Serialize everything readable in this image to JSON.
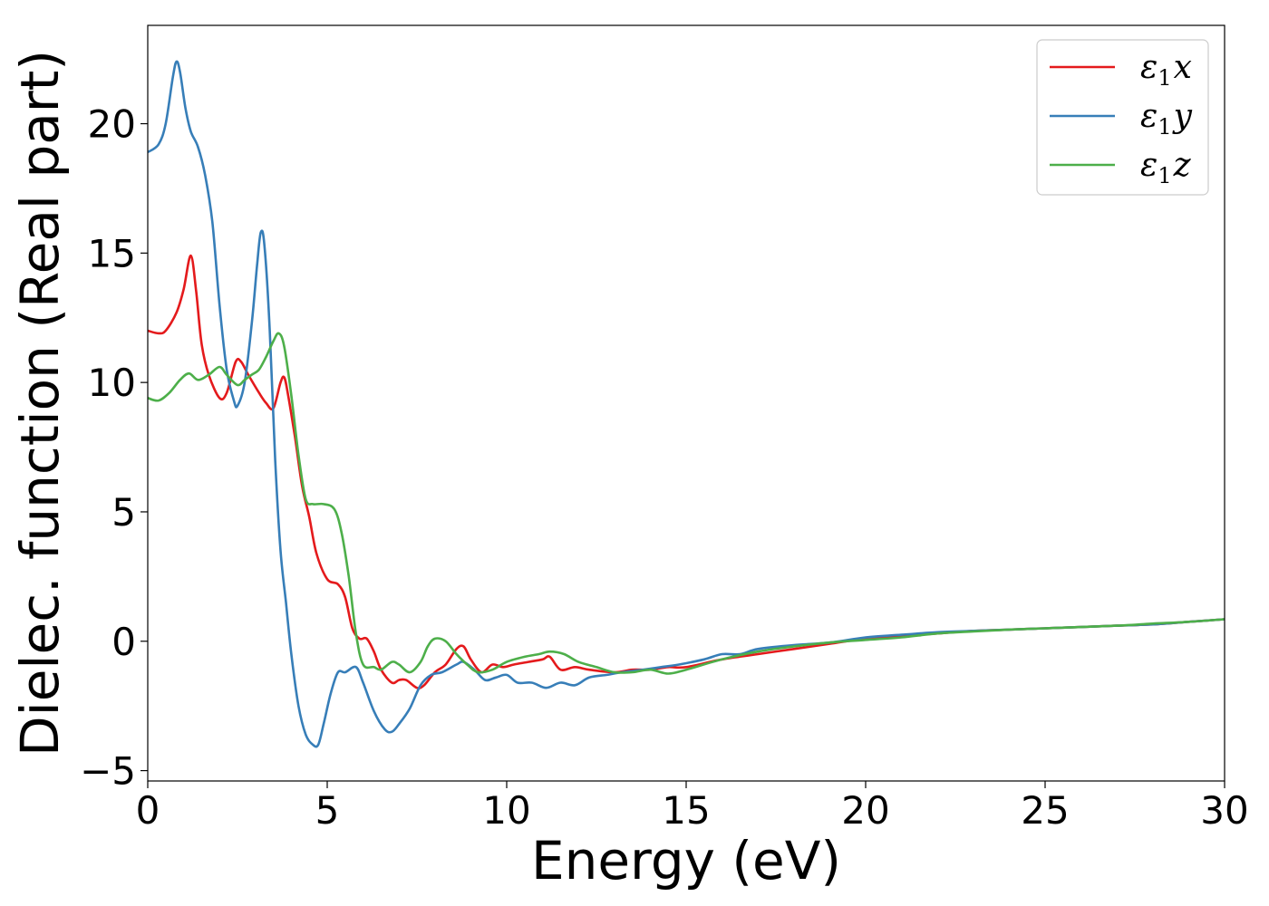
{
  "chart_data": {
    "type": "line",
    "xlabel": "Energy (eV)",
    "ylabel": "Dielec. function (Real part)",
    "xlim": [
      0,
      30
    ],
    "ylim": [
      -5.4,
      23.8
    ],
    "xticks": [
      0,
      5,
      10,
      15,
      20,
      25,
      30
    ],
    "yticks": [
      -5,
      0,
      5,
      10,
      15,
      20
    ],
    "xtick_labels": [
      "0",
      "5",
      "10",
      "15",
      "20",
      "25",
      "30"
    ],
    "ytick_labels": [
      "−5",
      "0",
      "5",
      "10",
      "15",
      "20"
    ],
    "grid": false,
    "legend_position": "top-right",
    "series": [
      {
        "name": "ε",
        "sub": "1",
        "var": "x",
        "color": "#e41a1c",
        "points": [
          [
            0,
            12.0
          ],
          [
            0.3,
            11.9
          ],
          [
            0.5,
            12.0
          ],
          [
            0.8,
            12.7
          ],
          [
            1.0,
            13.6
          ],
          [
            1.2,
            14.9
          ],
          [
            1.35,
            13.5
          ],
          [
            1.5,
            11.5
          ],
          [
            1.7,
            10.3
          ],
          [
            2.0,
            9.4
          ],
          [
            2.2,
            9.6
          ],
          [
            2.45,
            10.8
          ],
          [
            2.6,
            10.8
          ],
          [
            2.8,
            10.3
          ],
          [
            3.1,
            9.6
          ],
          [
            3.3,
            9.2
          ],
          [
            3.5,
            9.0
          ],
          [
            3.7,
            10.0
          ],
          [
            3.8,
            10.2
          ],
          [
            3.9,
            9.6
          ],
          [
            4.1,
            7.9
          ],
          [
            4.3,
            6.0
          ],
          [
            4.5,
            4.8
          ],
          [
            4.7,
            3.4
          ],
          [
            5.0,
            2.4
          ],
          [
            5.3,
            2.2
          ],
          [
            5.5,
            1.7
          ],
          [
            5.7,
            0.5
          ],
          [
            5.9,
            0.1
          ],
          [
            6.1,
            0.1
          ],
          [
            6.3,
            -0.4
          ],
          [
            6.5,
            -1.1
          ],
          [
            6.8,
            -1.6
          ],
          [
            7.0,
            -1.5
          ],
          [
            7.2,
            -1.5
          ],
          [
            7.5,
            -1.8
          ],
          [
            7.7,
            -1.7
          ],
          [
            8.0,
            -1.2
          ],
          [
            8.3,
            -0.9
          ],
          [
            8.6,
            -0.3
          ],
          [
            8.8,
            -0.2
          ],
          [
            9.0,
            -0.7
          ],
          [
            9.3,
            -1.2
          ],
          [
            9.6,
            -0.9
          ],
          [
            9.9,
            -1.0
          ],
          [
            10.2,
            -0.9
          ],
          [
            10.6,
            -0.8
          ],
          [
            11.0,
            -0.7
          ],
          [
            11.2,
            -0.6
          ],
          [
            11.5,
            -1.1
          ],
          [
            11.9,
            -1.0
          ],
          [
            12.3,
            -1.1
          ],
          [
            13.0,
            -1.2
          ],
          [
            13.5,
            -1.1
          ],
          [
            14.0,
            -1.1
          ],
          [
            14.5,
            -1.0
          ],
          [
            15.0,
            -1.0
          ],
          [
            16.0,
            -0.7
          ],
          [
            17.0,
            -0.5
          ],
          [
            18.0,
            -0.3
          ],
          [
            19.0,
            -0.1
          ],
          [
            20.0,
            0.1
          ],
          [
            21.0,
            0.2
          ],
          [
            22.0,
            0.3
          ],
          [
            23.0,
            0.4
          ],
          [
            24.0,
            0.45
          ],
          [
            25.0,
            0.5
          ],
          [
            26.0,
            0.55
          ],
          [
            27.0,
            0.6
          ],
          [
            28.0,
            0.65
          ],
          [
            29.0,
            0.75
          ],
          [
            30.0,
            0.85
          ]
        ]
      },
      {
        "name": "ε",
        "sub": "1",
        "var": "y",
        "color": "#377eb8",
        "points": [
          [
            0,
            18.9
          ],
          [
            0.3,
            19.2
          ],
          [
            0.5,
            20.0
          ],
          [
            0.7,
            21.8
          ],
          [
            0.8,
            22.4
          ],
          [
            0.9,
            22.0
          ],
          [
            1.05,
            20.6
          ],
          [
            1.2,
            19.7
          ],
          [
            1.4,
            19.1
          ],
          [
            1.6,
            18.0
          ],
          [
            1.8,
            16.2
          ],
          [
            2.0,
            13.0
          ],
          [
            2.2,
            10.5
          ],
          [
            2.4,
            9.3
          ],
          [
            2.5,
            9.1
          ],
          [
            2.7,
            10.0
          ],
          [
            2.9,
            12.3
          ],
          [
            3.05,
            14.6
          ],
          [
            3.15,
            15.8
          ],
          [
            3.25,
            15.3
          ],
          [
            3.4,
            12.0
          ],
          [
            3.55,
            7.0
          ],
          [
            3.7,
            3.5
          ],
          [
            3.85,
            1.5
          ],
          [
            4.0,
            -0.5
          ],
          [
            4.2,
            -2.5
          ],
          [
            4.4,
            -3.6
          ],
          [
            4.6,
            -4.0
          ],
          [
            4.75,
            -4.0
          ],
          [
            4.9,
            -3.2
          ],
          [
            5.1,
            -2.0
          ],
          [
            5.3,
            -1.2
          ],
          [
            5.5,
            -1.2
          ],
          [
            5.8,
            -1.0
          ],
          [
            6.0,
            -1.6
          ],
          [
            6.3,
            -2.7
          ],
          [
            6.6,
            -3.4
          ],
          [
            6.8,
            -3.5
          ],
          [
            7.0,
            -3.2
          ],
          [
            7.3,
            -2.6
          ],
          [
            7.6,
            -1.7
          ],
          [
            7.9,
            -1.3
          ],
          [
            8.2,
            -1.2
          ],
          [
            8.6,
            -0.9
          ],
          [
            8.8,
            -0.8
          ],
          [
            9.1,
            -1.1
          ],
          [
            9.4,
            -1.5
          ],
          [
            9.7,
            -1.4
          ],
          [
            10.0,
            -1.3
          ],
          [
            10.3,
            -1.6
          ],
          [
            10.7,
            -1.6
          ],
          [
            11.1,
            -1.8
          ],
          [
            11.5,
            -1.6
          ],
          [
            11.9,
            -1.7
          ],
          [
            12.3,
            -1.4
          ],
          [
            12.8,
            -1.3
          ],
          [
            13.2,
            -1.2
          ],
          [
            13.8,
            -1.1
          ],
          [
            14.3,
            -1.0
          ],
          [
            14.8,
            -0.9
          ],
          [
            15.5,
            -0.7
          ],
          [
            16.0,
            -0.5
          ],
          [
            16.5,
            -0.5
          ],
          [
            17.0,
            -0.3
          ],
          [
            18.0,
            -0.15
          ],
          [
            19.0,
            -0.05
          ],
          [
            20.0,
            0.15
          ],
          [
            21.0,
            0.25
          ],
          [
            22.0,
            0.35
          ],
          [
            23.0,
            0.4
          ],
          [
            24.0,
            0.45
          ],
          [
            25.0,
            0.5
          ],
          [
            26.0,
            0.55
          ],
          [
            27.0,
            0.6
          ],
          [
            28.0,
            0.65
          ],
          [
            29.0,
            0.75
          ],
          [
            30.0,
            0.85
          ]
        ]
      },
      {
        "name": "ε",
        "sub": "1",
        "var": "z",
        "color": "#4daf4a",
        "points": [
          [
            0,
            9.4
          ],
          [
            0.3,
            9.3
          ],
          [
            0.6,
            9.6
          ],
          [
            0.9,
            10.1
          ],
          [
            1.15,
            10.35
          ],
          [
            1.4,
            10.1
          ],
          [
            1.7,
            10.3
          ],
          [
            2.0,
            10.6
          ],
          [
            2.2,
            10.3
          ],
          [
            2.5,
            9.9
          ],
          [
            2.7,
            10.1
          ],
          [
            2.9,
            10.3
          ],
          [
            3.1,
            10.5
          ],
          [
            3.3,
            11.0
          ],
          [
            3.5,
            11.6
          ],
          [
            3.65,
            11.9
          ],
          [
            3.8,
            11.4
          ],
          [
            4.0,
            9.5
          ],
          [
            4.2,
            7.2
          ],
          [
            4.4,
            5.5
          ],
          [
            4.6,
            5.3
          ],
          [
            4.9,
            5.3
          ],
          [
            5.2,
            5.1
          ],
          [
            5.4,
            4.2
          ],
          [
            5.6,
            2.5
          ],
          [
            5.8,
            0.3
          ],
          [
            6.0,
            -0.9
          ],
          [
            6.3,
            -1.0
          ],
          [
            6.5,
            -1.1
          ],
          [
            6.8,
            -0.8
          ],
          [
            7.0,
            -0.9
          ],
          [
            7.3,
            -1.2
          ],
          [
            7.6,
            -0.8
          ],
          [
            7.8,
            -0.2
          ],
          [
            8.0,
            0.1
          ],
          [
            8.3,
            0.0
          ],
          [
            8.6,
            -0.5
          ],
          [
            8.9,
            -0.9
          ],
          [
            9.2,
            -1.2
          ],
          [
            9.6,
            -1.1
          ],
          [
            10.0,
            -0.8
          ],
          [
            10.5,
            -0.6
          ],
          [
            10.9,
            -0.5
          ],
          [
            11.2,
            -0.4
          ],
          [
            11.6,
            -0.5
          ],
          [
            12.0,
            -0.8
          ],
          [
            12.5,
            -1.0
          ],
          [
            13.0,
            -1.2
          ],
          [
            13.5,
            -1.2
          ],
          [
            14.0,
            -1.1
          ],
          [
            14.5,
            -1.25
          ],
          [
            15.0,
            -1.1
          ],
          [
            16.0,
            -0.7
          ],
          [
            17.0,
            -0.4
          ],
          [
            18.0,
            -0.2
          ],
          [
            19.0,
            -0.05
          ],
          [
            20.0,
            0.05
          ],
          [
            21.0,
            0.15
          ],
          [
            22.0,
            0.3
          ],
          [
            23.0,
            0.38
          ],
          [
            24.0,
            0.45
          ],
          [
            25.0,
            0.5
          ],
          [
            26.0,
            0.55
          ],
          [
            27.0,
            0.6
          ],
          [
            28.0,
            0.68
          ],
          [
            29.0,
            0.75
          ],
          [
            30.0,
            0.85
          ]
        ]
      }
    ]
  }
}
